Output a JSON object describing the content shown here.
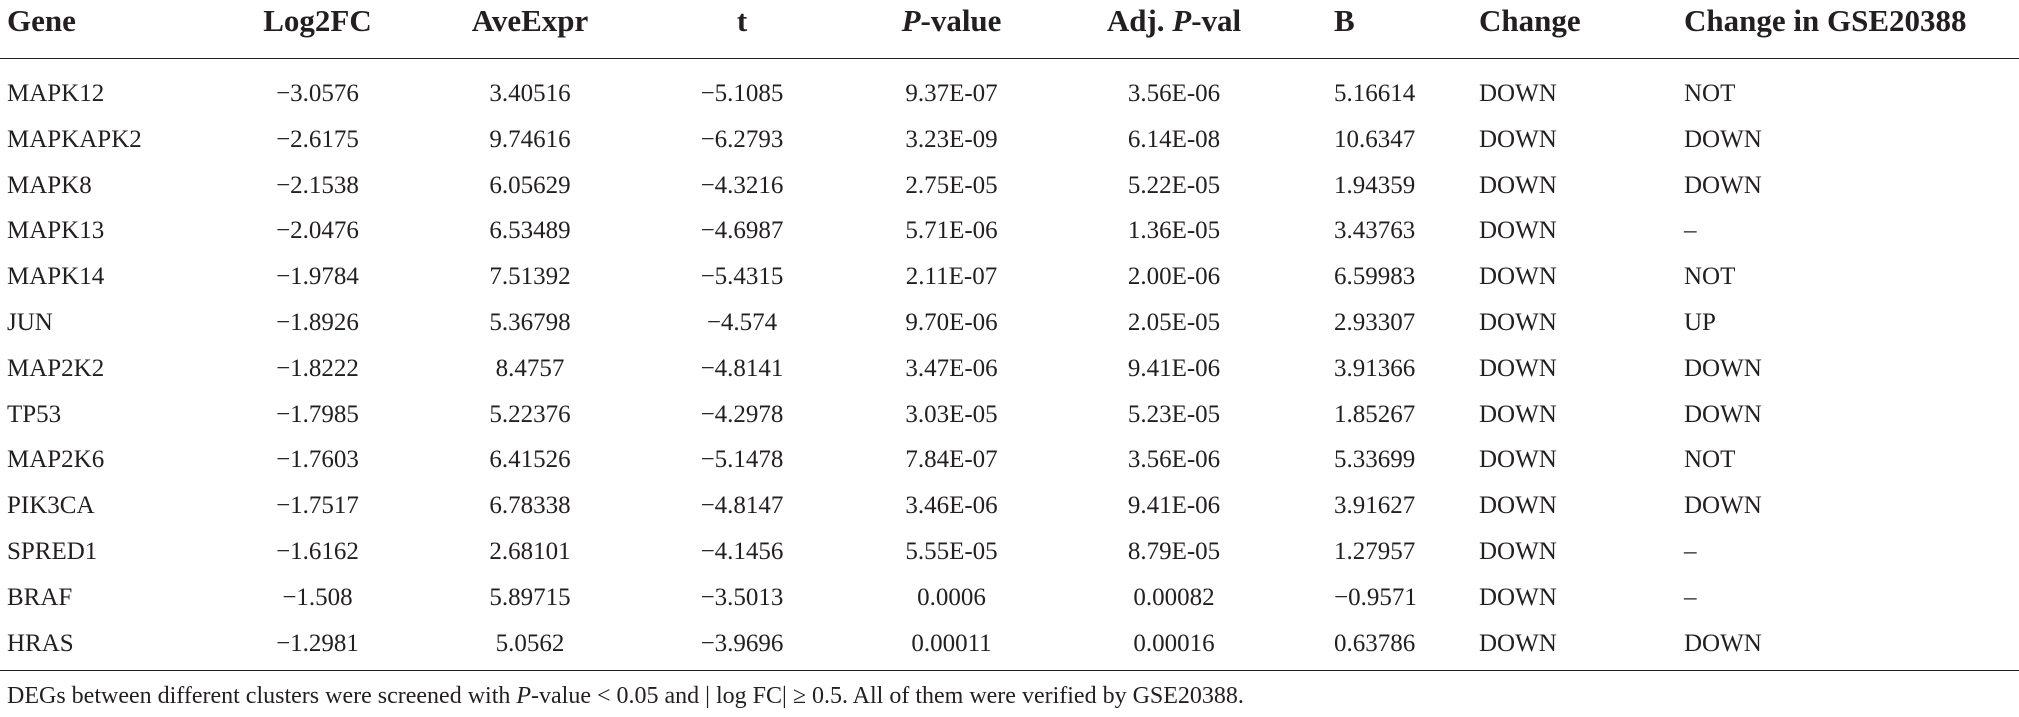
{
  "table": {
    "headers": {
      "gene": "Gene",
      "log2fc": "Log2FC",
      "aveexpr": "AveExpr",
      "t": "t",
      "pvalue_italic": "P",
      "pvalue_rest": "-value",
      "adjp_prefix": "Adj. ",
      "adjp_italic": "P",
      "adjp_rest": "-val",
      "b": "B",
      "change": "Change",
      "change_gse": "Change in GSE20388"
    },
    "rows": [
      {
        "gene": "MAPK12",
        "log2fc": "−3.0576",
        "aveexpr": "3.40516",
        "t": "−5.1085",
        "pvalue": "9.37E-07",
        "adjp": "3.56E-06",
        "b": "5.16614",
        "change": "DOWN",
        "change_gse": "NOT"
      },
      {
        "gene": "MAPKAPK2",
        "log2fc": "−2.6175",
        "aveexpr": "9.74616",
        "t": "−6.2793",
        "pvalue": "3.23E-09",
        "adjp": "6.14E-08",
        "b": "10.6347",
        "change": "DOWN",
        "change_gse": "DOWN"
      },
      {
        "gene": "MAPK8",
        "log2fc": "−2.1538",
        "aveexpr": "6.05629",
        "t": "−4.3216",
        "pvalue": "2.75E-05",
        "adjp": "5.22E-05",
        "b": "1.94359",
        "change": "DOWN",
        "change_gse": "DOWN"
      },
      {
        "gene": "MAPK13",
        "log2fc": "−2.0476",
        "aveexpr": "6.53489",
        "t": "−4.6987",
        "pvalue": "5.71E-06",
        "adjp": "1.36E-05",
        "b": "3.43763",
        "change": "DOWN",
        "change_gse": "–"
      },
      {
        "gene": "MAPK14",
        "log2fc": "−1.9784",
        "aveexpr": "7.51392",
        "t": "−5.4315",
        "pvalue": "2.11E-07",
        "adjp": "2.00E-06",
        "b": "6.59983",
        "change": "DOWN",
        "change_gse": "NOT"
      },
      {
        "gene": "JUN",
        "log2fc": "−1.8926",
        "aveexpr": "5.36798",
        "t": "−4.574",
        "pvalue": "9.70E-06",
        "adjp": "2.05E-05",
        "b": "2.93307",
        "change": "DOWN",
        "change_gse": "UP"
      },
      {
        "gene": "MAP2K2",
        "log2fc": "−1.8222",
        "aveexpr": "8.4757",
        "t": "−4.8141",
        "pvalue": "3.47E-06",
        "adjp": "9.41E-06",
        "b": "3.91366",
        "change": "DOWN",
        "change_gse": "DOWN"
      },
      {
        "gene": "TP53",
        "log2fc": "−1.7985",
        "aveexpr": "5.22376",
        "t": "−4.2978",
        "pvalue": "3.03E-05",
        "adjp": "5.23E-05",
        "b": "1.85267",
        "change": "DOWN",
        "change_gse": "DOWN"
      },
      {
        "gene": "MAP2K6",
        "log2fc": "−1.7603",
        "aveexpr": "6.41526",
        "t": "−5.1478",
        "pvalue": "7.84E-07",
        "adjp": "3.56E-06",
        "b": "5.33699",
        "change": "DOWN",
        "change_gse": "NOT"
      },
      {
        "gene": "PIK3CA",
        "log2fc": "−1.7517",
        "aveexpr": "6.78338",
        "t": "−4.8147",
        "pvalue": "3.46E-06",
        "adjp": "9.41E-06",
        "b": "3.91627",
        "change": "DOWN",
        "change_gse": "DOWN"
      },
      {
        "gene": "SPRED1",
        "log2fc": "−1.6162",
        "aveexpr": "2.68101",
        "t": "−4.1456",
        "pvalue": "5.55E-05",
        "adjp": "8.79E-05",
        "b": "1.27957",
        "change": "DOWN",
        "change_gse": "–"
      },
      {
        "gene": "BRAF",
        "log2fc": "−1.508",
        "aveexpr": "5.89715",
        "t": "−3.5013",
        "pvalue": "0.0006",
        "adjp": "0.00082",
        "b": "−0.9571",
        "change": "DOWN",
        "change_gse": "–"
      },
      {
        "gene": "HRAS",
        "log2fc": "−1.2981",
        "aveexpr": "5.0562",
        "t": "−3.9696",
        "pvalue": "0.00011",
        "adjp": "0.00016",
        "b": "0.63786",
        "change": "DOWN",
        "change_gse": "DOWN"
      }
    ]
  },
  "footnote": {
    "part1": "DEGs between different clusters were screened with ",
    "part2_italic": "P",
    "part3": "-value < 0.05 and | log FC| ≥ 0.5. All of them were verified by GSE20388."
  }
}
